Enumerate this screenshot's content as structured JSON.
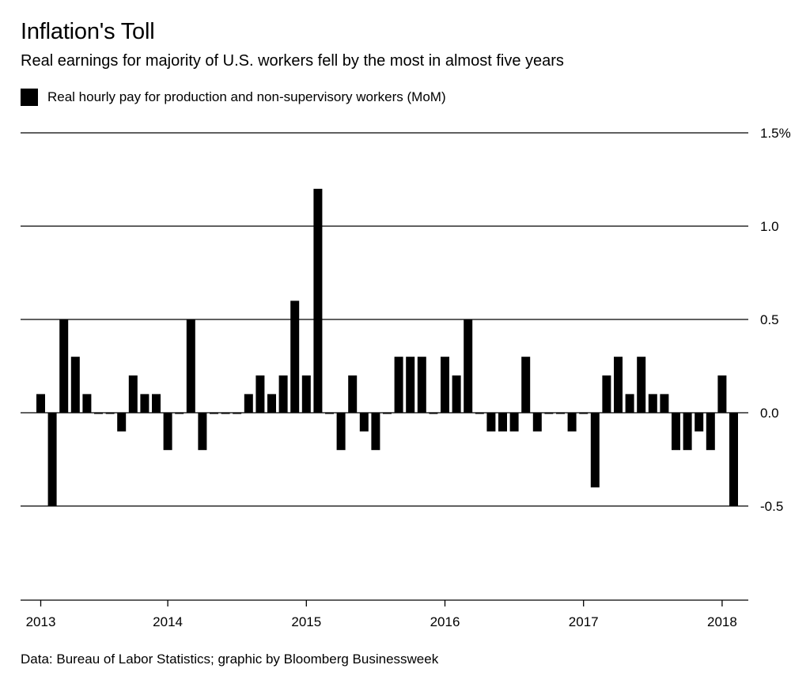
{
  "header": {
    "title": "Inflation's Toll",
    "subtitle": "Real earnings for majority of U.S. workers fell by the most in almost five years"
  },
  "legend": {
    "label": "Real hourly pay for production and non-supervisory workers (MoM)"
  },
  "source": "Data: Bureau of Labor Statistics; graphic by Bloomberg Businessweek",
  "colors": {
    "bar": "#000000",
    "grid": "#000000",
    "background": "#ffffff"
  },
  "chart_data": {
    "type": "bar",
    "title": "Inflation's Toll",
    "subtitle": "Real earnings for majority of U.S. workers fell by the most in almost five years",
    "ylim": [
      -1.0,
      1.5
    ],
    "y_ticks": [
      {
        "value": 1.5,
        "label": "1.5%"
      },
      {
        "value": 1.0,
        "label": "1.0"
      },
      {
        "value": 0.5,
        "label": "0.5"
      },
      {
        "value": 0.0,
        "label": "0.0"
      },
      {
        "value": -0.5,
        "label": "-0.5"
      }
    ],
    "x_ticks": [
      {
        "label": "2013",
        "index": 0
      },
      {
        "label": "2014",
        "index": 11
      },
      {
        "label": "2015",
        "index": 23
      },
      {
        "label": "2016",
        "index": 35
      },
      {
        "label": "2017",
        "index": 47
      },
      {
        "label": "2018",
        "index": 59
      }
    ],
    "axis_position": "right",
    "grid": true,
    "series": [
      {
        "name": "Real hourly pay for production and non-supervisory workers (MoM)",
        "values": [
          0.1,
          -0.5,
          0.5,
          0.3,
          0.1,
          0.0,
          0.0,
          -0.1,
          0.2,
          0.1,
          0.1,
          -0.2,
          0.0,
          0.5,
          -0.2,
          0.0,
          0.0,
          0.0,
          0.1,
          0.2,
          0.1,
          0.2,
          0.6,
          0.2,
          1.2,
          0.0,
          -0.2,
          0.2,
          -0.1,
          -0.2,
          0.0,
          0.3,
          0.3,
          0.3,
          0.0,
          0.3,
          0.2,
          0.5,
          0.0,
          -0.1,
          -0.1,
          -0.1,
          0.3,
          -0.1,
          0.0,
          0.0,
          -0.1,
          0.0,
          -0.4,
          0.2,
          0.3,
          0.1,
          0.3,
          0.1,
          0.1,
          -0.2,
          -0.2,
          -0.1,
          -0.2,
          0.2,
          -0.5
        ]
      }
    ]
  }
}
